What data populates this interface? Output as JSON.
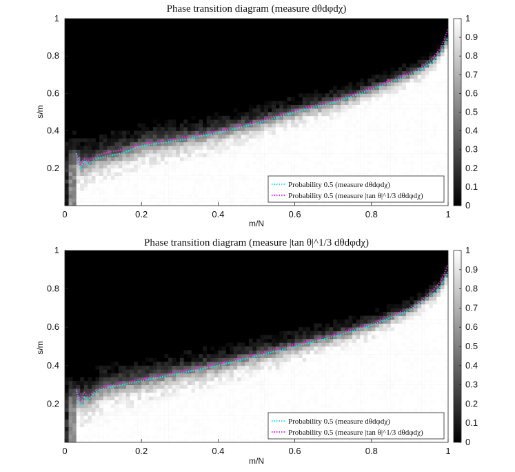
{
  "chart_data": [
    {
      "type": "heatmap",
      "title": "Phase transition diagram (measure dθdφdχ)",
      "xlabel": "m/N",
      "ylabel": "s/m",
      "xlim": [
        0,
        1
      ],
      "ylim": [
        0,
        1
      ],
      "xticks": [
        "0",
        "0.2",
        "0.4",
        "0.6",
        "0.8",
        "1"
      ],
      "yticks": [
        "0.2",
        "0.4",
        "0.6",
        "0.8",
        "1"
      ],
      "colorbar": {
        "range": [
          0,
          1
        ],
        "ticks": [
          "0",
          "0.1",
          "0.2",
          "0.3",
          "0.4",
          "0.5",
          "0.6",
          "0.7",
          "0.8",
          "0.9",
          "1"
        ]
      },
      "legend_position": "bottom-right",
      "series": [
        {
          "name": "Probability 0.5 (measure dθdφdχ)",
          "color": "#33e0e0",
          "x": [
            0.03,
            0.04,
            0.05,
            0.06,
            0.08,
            0.1,
            0.15,
            0.2,
            0.3,
            0.4,
            0.5,
            0.6,
            0.7,
            0.8,
            0.85,
            0.9,
            0.93,
            0.96,
            0.98,
            0.99,
            1.0
          ],
          "y": [
            0.28,
            0.2,
            0.24,
            0.22,
            0.25,
            0.26,
            0.28,
            0.32,
            0.35,
            0.39,
            0.44,
            0.5,
            0.55,
            0.62,
            0.66,
            0.7,
            0.73,
            0.77,
            0.82,
            0.86,
            0.9
          ]
        },
        {
          "name": "Probability 0.5 (measure |tan θ|^1/3 dθdφdχ)",
          "color": "#dd33dd",
          "x": [
            0.03,
            0.04,
            0.05,
            0.06,
            0.08,
            0.1,
            0.15,
            0.2,
            0.3,
            0.4,
            0.5,
            0.6,
            0.7,
            0.8,
            0.85,
            0.9,
            0.93,
            0.96,
            0.98,
            0.99,
            1.0
          ],
          "y": [
            0.27,
            0.22,
            0.25,
            0.24,
            0.26,
            0.28,
            0.3,
            0.33,
            0.36,
            0.4,
            0.45,
            0.51,
            0.56,
            0.63,
            0.67,
            0.71,
            0.74,
            0.79,
            0.84,
            0.89,
            0.95
          ]
        }
      ]
    },
    {
      "type": "heatmap",
      "title": "Phase transition diagram (measure |tan θ|^1/3 dθdφdχ)",
      "xlabel": "m/N",
      "ylabel": "s/m",
      "xlim": [
        0,
        1
      ],
      "ylim": [
        0,
        1
      ],
      "xticks": [
        "0",
        "0.2",
        "0.4",
        "0.6",
        "0.8",
        "1"
      ],
      "yticks": [
        "0.2",
        "0.4",
        "0.6",
        "0.8",
        "1"
      ],
      "colorbar": {
        "range": [
          0,
          1
        ],
        "ticks": [
          "0",
          "0.1",
          "0.2",
          "0.3",
          "0.4",
          "0.5",
          "0.6",
          "0.7",
          "0.8",
          "0.9",
          "1"
        ]
      },
      "legend_position": "bottom-right",
      "series": [
        {
          "name": "Probability 0.5 (measure dθdφdχ)",
          "color": "#33e0e0",
          "x": [
            0.03,
            0.04,
            0.05,
            0.06,
            0.08,
            0.1,
            0.15,
            0.2,
            0.3,
            0.4,
            0.5,
            0.6,
            0.7,
            0.8,
            0.85,
            0.9,
            0.93,
            0.96,
            0.98,
            0.99,
            1.0
          ],
          "y": [
            0.27,
            0.19,
            0.24,
            0.22,
            0.26,
            0.28,
            0.3,
            0.32,
            0.36,
            0.4,
            0.45,
            0.5,
            0.55,
            0.61,
            0.65,
            0.69,
            0.73,
            0.77,
            0.81,
            0.85,
            0.89
          ]
        },
        {
          "name": "Probability 0.5 (measure |tan θ|^1/3 dθdφdχ)",
          "color": "#dd33dd",
          "x": [
            0.03,
            0.04,
            0.05,
            0.06,
            0.08,
            0.1,
            0.15,
            0.2,
            0.3,
            0.4,
            0.5,
            0.6,
            0.7,
            0.8,
            0.85,
            0.9,
            0.93,
            0.96,
            0.98,
            0.99,
            1.0
          ],
          "y": [
            0.28,
            0.21,
            0.26,
            0.24,
            0.27,
            0.29,
            0.31,
            0.33,
            0.37,
            0.41,
            0.46,
            0.51,
            0.56,
            0.62,
            0.66,
            0.7,
            0.74,
            0.79,
            0.84,
            0.88,
            0.93
          ]
        }
      ]
    }
  ]
}
